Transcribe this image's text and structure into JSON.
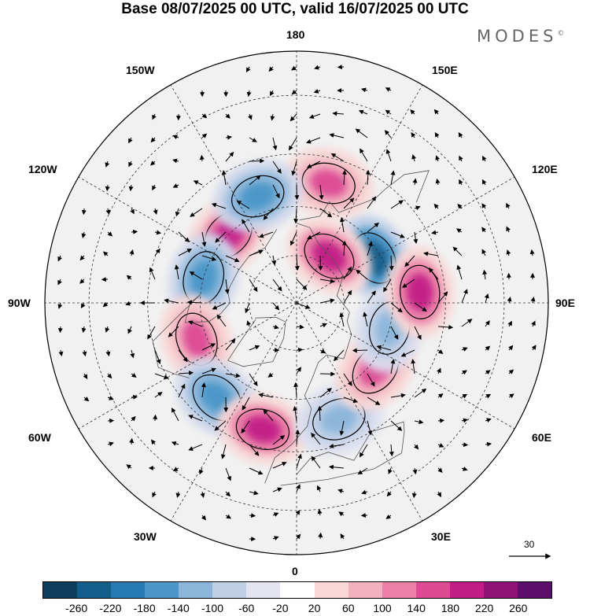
{
  "title": "Base 08/07/2025 00 UTC, valid 16/07/2025 00 UTC",
  "brand": {
    "name": "MODES",
    "mark": "©"
  },
  "map": {
    "projection": "north-polar-stereographic",
    "longitude_labels": {
      "top": "180",
      "bottom": "0",
      "left": "90W",
      "right": "90E",
      "upper_left_1": "150W",
      "upper_left_2": "120W",
      "lower_left_1": "60W",
      "lower_left_2": "30W",
      "upper_right_1": "150E",
      "upper_right_2": "120E",
      "lower_right_1": "60E",
      "lower_right_2": "30E"
    },
    "anomaly_centers": [
      {
        "sign": "negative",
        "strength": "strong",
        "lon": 120,
        "lat": 62
      },
      {
        "sign": "positive",
        "strength": "strong",
        "lon": -135,
        "lat": 60
      },
      {
        "sign": "negative",
        "strength": "moderate",
        "lon": -105,
        "lat": 60
      },
      {
        "sign": "positive",
        "strength": "moderate",
        "lon": -70,
        "lat": 57
      },
      {
        "sign": "negative",
        "strength": "moderate",
        "lon": -40,
        "lat": 52
      },
      {
        "sign": "positive",
        "strength": "strong",
        "lon": -15,
        "lat": 50
      },
      {
        "sign": "negative",
        "strength": "weak",
        "lon": 20,
        "lat": 52
      },
      {
        "sign": "positive",
        "strength": "moderate",
        "lon": 50,
        "lat": 58
      },
      {
        "sign": "negative",
        "strength": "weak",
        "lon": 75,
        "lat": 60
      },
      {
        "sign": "positive",
        "strength": "strong",
        "lon": 95,
        "lat": 52
      },
      {
        "sign": "positive",
        "strength": "strong",
        "lon": 145,
        "lat": 72
      },
      {
        "sign": "positive",
        "strength": "moderate",
        "lon": 165,
        "lat": 52
      },
      {
        "sign": "negative",
        "strength": "moderate",
        "lon": -160,
        "lat": 55
      }
    ]
  },
  "reference_vector": {
    "value": "30"
  },
  "colorbar": {
    "ticks": [
      "-260",
      "-220",
      "-180",
      "-140",
      "-100",
      "-60",
      "-20",
      "20",
      "60",
      "100",
      "140",
      "180",
      "220",
      "260"
    ],
    "colors": [
      "#0d3e5e",
      "#145e8c",
      "#2779b4",
      "#4a96c7",
      "#8bb6da",
      "#bfcfe6",
      "#e4e4f0",
      "#ffffff",
      "#f8d7d6",
      "#f2b1be",
      "#ea80a6",
      "#dc4a94",
      "#c21c86",
      "#911277",
      "#5c0e6b"
    ]
  }
}
